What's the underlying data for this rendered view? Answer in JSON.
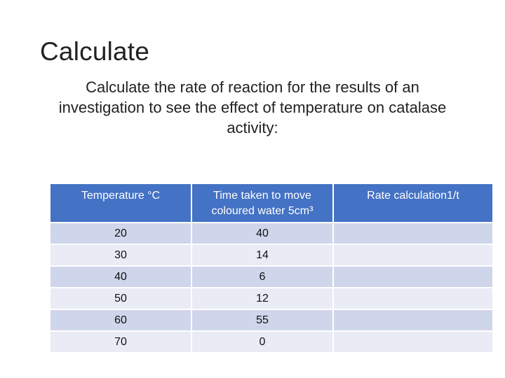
{
  "slide": {
    "title": "Calculate",
    "instruction": "Calculate the rate of reaction for the results of an investigation to see the effect of temperature on catalase activity:"
  },
  "table": {
    "headers": [
      "Temperature °C",
      "Time taken to move coloured water 5cm³",
      "Rate calculation1/t"
    ],
    "rows": [
      {
        "temperature": "20",
        "time": "40",
        "rate": ""
      },
      {
        "temperature": "30",
        "time": "14",
        "rate": ""
      },
      {
        "temperature": "40",
        "time": "6",
        "rate": ""
      },
      {
        "temperature": "50",
        "time": "12",
        "rate": ""
      },
      {
        "temperature": "60",
        "time": "55",
        "rate": ""
      },
      {
        "temperature": "70",
        "time": "0",
        "rate": ""
      }
    ]
  },
  "colors": {
    "header": "#4472c4",
    "row_dark": "#cfd5ea",
    "row_light": "#e9ebf5"
  }
}
